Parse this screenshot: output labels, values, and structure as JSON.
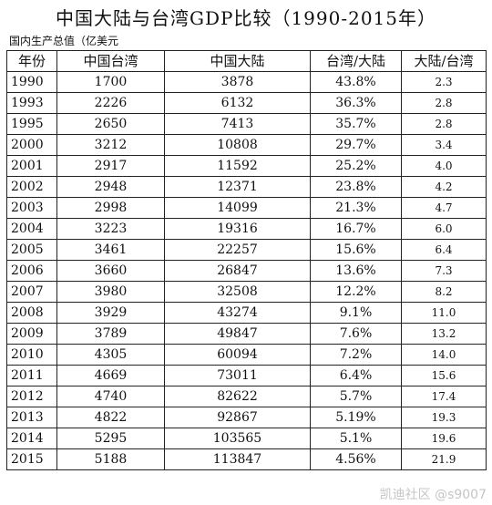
{
  "title": "中国大陆与台湾GDP比较（1990-2015年）",
  "unit_label": "国内生产总值（亿美元",
  "headers": [
    "年份",
    "中国台湾",
    "中国大陆",
    "台湾/大陆",
    "大陆/台湾"
  ],
  "rows": [
    [
      "1990",
      "1700",
      "3878",
      "43.8%",
      "2.3"
    ],
    [
      "1993",
      "2226",
      "6132",
      "36.3%",
      "2.8"
    ],
    [
      "1995",
      "2650",
      "7413",
      "35.7%",
      "2.8"
    ],
    [
      "2000",
      "3212",
      "10808",
      "29.7%",
      "3.4"
    ],
    [
      "2001",
      "2917",
      "11592",
      "25.2%",
      "4.0"
    ],
    [
      "2002",
      "2948",
      "12371",
      "23.8%",
      "4.2"
    ],
    [
      "2003",
      "2998",
      "14099",
      "21.3%",
      "4.7"
    ],
    [
      "2004",
      "3223",
      "19316",
      "16.7%",
      "6.0"
    ],
    [
      "2005",
      "3461",
      "22257",
      "15.6%",
      "6.4"
    ],
    [
      "2006",
      "3660",
      "26847",
      "13.6%",
      "7.3"
    ],
    [
      "2007",
      "3980",
      "32508",
      "12.2%",
      "8.2"
    ],
    [
      "2008",
      "3929",
      "43274",
      "9.1%",
      "11.0"
    ],
    [
      "2009",
      "3789",
      "49847",
      "7.6%",
      "13.2"
    ],
    [
      "2010",
      "4305",
      "60094",
      "7.2%",
      "14.0"
    ],
    [
      "2011",
      "4669",
      "73011",
      "6.4%",
      "15.6"
    ],
    [
      "2012",
      "4740",
      "82622",
      "5.7%",
      "17.4"
    ],
    [
      "2013",
      "4822",
      "92867",
      "5.19%",
      "19.3"
    ],
    [
      "2014",
      "5295",
      "103565",
      "5.1%",
      "19.6"
    ],
    [
      "2015",
      "5188",
      "113847",
      "4.56%",
      "21.9"
    ]
  ],
  "watermark": "凯迪社区 @s9007"
}
